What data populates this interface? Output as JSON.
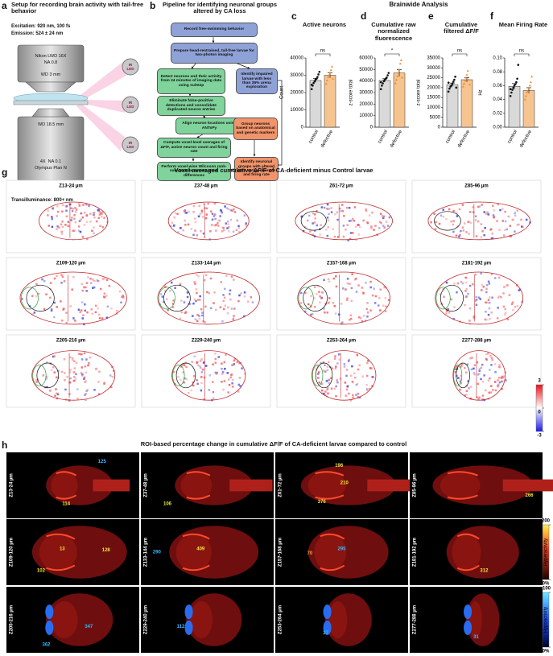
{
  "panel_a": {
    "letter": "a",
    "title": "Setup for recording brain activity with tail-free behavior",
    "excitation": "Excitation: 920 nm, 100 fs",
    "emission": "Emission: 524 ± 24 nm",
    "objective_top": [
      "Nikon LWD 16X",
      "NA 0.8"
    ],
    "wd_top": "WD 3 mm",
    "wd_bottom": "WD 18.5 mm",
    "objective_bottom": [
      "4X  NA 0.1",
      "Olympus Plan N"
    ],
    "illumination": "Transilluminance: 800+ nm",
    "leds": [
      "IR LED",
      "IR LED",
      "IR LED"
    ]
  },
  "panel_b": {
    "letter": "b",
    "title": "Pipeline for identifying neuronal groups altered by CA loss",
    "steps": [
      {
        "text": "Record free-swimming behavior",
        "color": "#8fa2d8"
      },
      {
        "text": "Prepare head-restrained, tail-free larvae for two-photon imaging",
        "color": "#8fa2d8"
      },
      {
        "text": "Detect neurons and their activity from 24 minutes of imaging data using suite2p",
        "color": "#7fd39b"
      },
      {
        "text": "Identify impaired larvae with less than 35% arena exploration",
        "color": "#8fa2d8"
      },
      {
        "text": "Eliminate false-positive detections and consolidate duplicated neuron entries",
        "color": "#7fd39b"
      },
      {
        "text": "Align neuron locations using ANTsPy",
        "color": "#7fd39b"
      },
      {
        "text": "Group neurons based on anatomical and genetic markers",
        "color": "#f2946b"
      },
      {
        "text": "Compute voxel-level averages of ΔF/F, active neuron count and firing rate",
        "color": "#7fd39b"
      },
      {
        "text": "Perform voxel-wise Wilcoxon rank-sum tests to assess voxel differences",
        "color": "#7fd39b"
      },
      {
        "text": "Identify neuronal groups with altered ΔF/F, active neurons and firing rate",
        "color": "#f2946b"
      }
    ]
  },
  "analysis_title": "Brainwide Analysis",
  "chart_data": [
    {
      "type": "bar",
      "label": "c",
      "title": "Active neurons",
      "ylabel": "Count",
      "categories": [
        "control",
        "defective"
      ],
      "values": [
        27000,
        30000
      ],
      "errors": [
        1200,
        1500
      ],
      "colors": [
        "#d9d9d9",
        "#f6c48f"
      ],
      "point_colors": [
        "#111111",
        "#ef8a33"
      ],
      "points": [
        [
          22000,
          24000,
          25500,
          26500,
          27500,
          28000,
          29000,
          30500,
          32000,
          24500
        ],
        [
          25000,
          27000,
          29000,
          30000,
          31500,
          33000,
          35000,
          28000
        ]
      ],
      "ylim": [
        0,
        40000
      ],
      "yticks": [
        0,
        10000,
        20000,
        30000,
        40000
      ],
      "significance": "ns"
    },
    {
      "type": "bar",
      "label": "d",
      "title": "Cumulative raw normalized fluorescence",
      "ylabel": "z-score total",
      "categories": [
        "control",
        "defective"
      ],
      "values": [
        40500,
        47000
      ],
      "errors": [
        1500,
        3000
      ],
      "colors": [
        "#d9d9d9",
        "#f6c48f"
      ],
      "point_colors": [
        "#111111",
        "#ef8a33"
      ],
      "points": [
        [
          33000,
          36000,
          38000,
          40000,
          41000,
          42000,
          43000,
          45000,
          47000,
          39000
        ],
        [
          38000,
          41000,
          44000,
          47000,
          50000,
          55000,
          58000,
          43000
        ]
      ],
      "ylim": [
        0,
        60000
      ],
      "yticks": [
        0,
        10000,
        20000,
        30000,
        40000,
        50000,
        60000
      ],
      "significance": "*"
    },
    {
      "type": "bar",
      "label": "e",
      "title": "Cumulative filtered ΔF/F",
      "ylabel": "z-score total",
      "categories": [
        "control",
        "defective"
      ],
      "values": [
        21500,
        24000
      ],
      "errors": [
        800,
        1100
      ],
      "colors": [
        "#d9d9d9",
        "#f6c48f"
      ],
      "point_colors": [
        "#111111",
        "#ef8a33"
      ],
      "points": [
        [
          18000,
          19500,
          20500,
          21000,
          22000,
          23000,
          24000,
          25500,
          20000,
          22500
        ],
        [
          20500,
          22000,
          23500,
          25000,
          26500,
          28500,
          24000,
          21500
        ]
      ],
      "ylim": [
        0,
        35000
      ],
      "yticks": [
        0,
        5000,
        10000,
        15000,
        20000,
        25000,
        30000,
        35000
      ],
      "significance": "ns"
    },
    {
      "type": "bar",
      "label": "f",
      "title": "Mean Firing Rate",
      "ylabel": "Hz",
      "categories": [
        "control",
        "defective"
      ],
      "values": [
        0.059,
        0.053
      ],
      "errors": [
        0.004,
        0.004
      ],
      "colors": [
        "#d9d9d9",
        "#f6c48f"
      ],
      "point_colors": [
        "#111111",
        "#ef8a33"
      ],
      "points": [
        [
          0.045,
          0.05,
          0.054,
          0.057,
          0.06,
          0.062,
          0.065,
          0.07,
          0.09,
          0.055
        ],
        [
          0.04,
          0.045,
          0.05,
          0.052,
          0.055,
          0.06,
          0.065,
          0.073
        ]
      ],
      "ylim": [
        0,
        0.1
      ],
      "yticks": [
        {
          "value": 0,
          "label": "0.00"
        },
        {
          "value": 0.02,
          "label": "0.02"
        },
        {
          "value": 0.04,
          "label": "0.04"
        },
        {
          "value": 0.06,
          "label": "0.06"
        },
        {
          "value": 0.08,
          "label": "0.08"
        },
        {
          "value": 0.1,
          "label": "0.10"
        }
      ],
      "significance": "ns"
    }
  ],
  "panel_g": {
    "letter": "g",
    "title": "Voxel-averaged cumulative ΔF/F of CA-deficient minus Control larvae",
    "maps": [
      "Z13-24 µm",
      "Z37-48 µm",
      "Z61-72 µm",
      "Z85-96 µm",
      "Z109-120 µm",
      "Z133-144 µm",
      "Z157-168 µm",
      "Z181-192 µm",
      "Z205-216 µm",
      "Z229-240 µm",
      "Z253-264 µm",
      "Z277-288 µm"
    ],
    "colorbar": {
      "lim": [
        -3,
        3
      ],
      "ticks": [
        3,
        0,
        -3
      ]
    }
  },
  "panel_h": {
    "letter": "h",
    "title": "ROI-based percentage change in cumulative ΔF/F of CA-deficient larvae compared to control",
    "maps": [
      {
        "label": "Z13-24 µm",
        "annotations": [
          {
            "text": "125",
            "color": "#3ab8ff"
          },
          {
            "text": "114",
            "color": "#f2e33a"
          }
        ]
      },
      {
        "label": "Z37-48 µm",
        "annotations": [
          {
            "text": "106",
            "color": "#f2e33a"
          }
        ]
      },
      {
        "label": "Z61-72 µm",
        "annotations": [
          {
            "text": "196",
            "color": "#f2e33a"
          },
          {
            "text": "210",
            "color": "#f2e33a"
          },
          {
            "text": "376",
            "color": "#f2e33a"
          }
        ]
      },
      {
        "label": "Z85-96 µm",
        "annotations": [
          {
            "text": "266",
            "color": "#f2e33a"
          }
        ]
      },
      {
        "label": "Z109-120 µm",
        "annotations": [
          {
            "text": "13",
            "color": "#f2e33a"
          },
          {
            "text": "128",
            "color": "#f2e33a"
          },
          {
            "text": "102",
            "color": "#f2e33a"
          }
        ]
      },
      {
        "label": "Z133-144 µm",
        "annotations": [
          {
            "text": "290",
            "color": "#3ab8ff"
          },
          {
            "text": "409",
            "color": "#f2e33a"
          }
        ]
      },
      {
        "label": "Z157-168 µm",
        "annotations": [
          {
            "text": "70",
            "color": "#f2a03a"
          },
          {
            "text": "295",
            "color": "#3ab8ff"
          }
        ]
      },
      {
        "label": "Z181-192 µm",
        "annotations": [
          {
            "text": "312",
            "color": "#f2e33a"
          }
        ]
      },
      {
        "label": "Z205-216 µm",
        "annotations": [
          {
            "text": "362",
            "color": "#3ab8ff"
          },
          {
            "text": "347",
            "color": "#3ab8ff"
          }
        ]
      },
      {
        "label": "Z229-240 µm",
        "annotations": [
          {
            "text": "112",
            "color": "#3ab8ff"
          }
        ]
      },
      {
        "label": "Z253-264 µm",
        "annotations": [
          {
            "text": "27",
            "color": "#3ab8ff"
          }
        ]
      },
      {
        "label": "Z277-288 µm",
        "annotations": [
          {
            "text": "31",
            "color": "#3ab8ff"
          }
        ]
      }
    ],
    "colorbars": [
      {
        "label": "Hyperactivity",
        "lim": [
          0,
          200
        ],
        "ticks": [
          200,
          {
            "value": 0,
            "label": "0%"
          }
        ]
      },
      {
        "label": "Hypoactivity",
        "lim": [
          0,
          -100
        ],
        "ticks": [
          -100,
          {
            "value": 0,
            "label": "0%"
          }
        ]
      }
    ]
  }
}
